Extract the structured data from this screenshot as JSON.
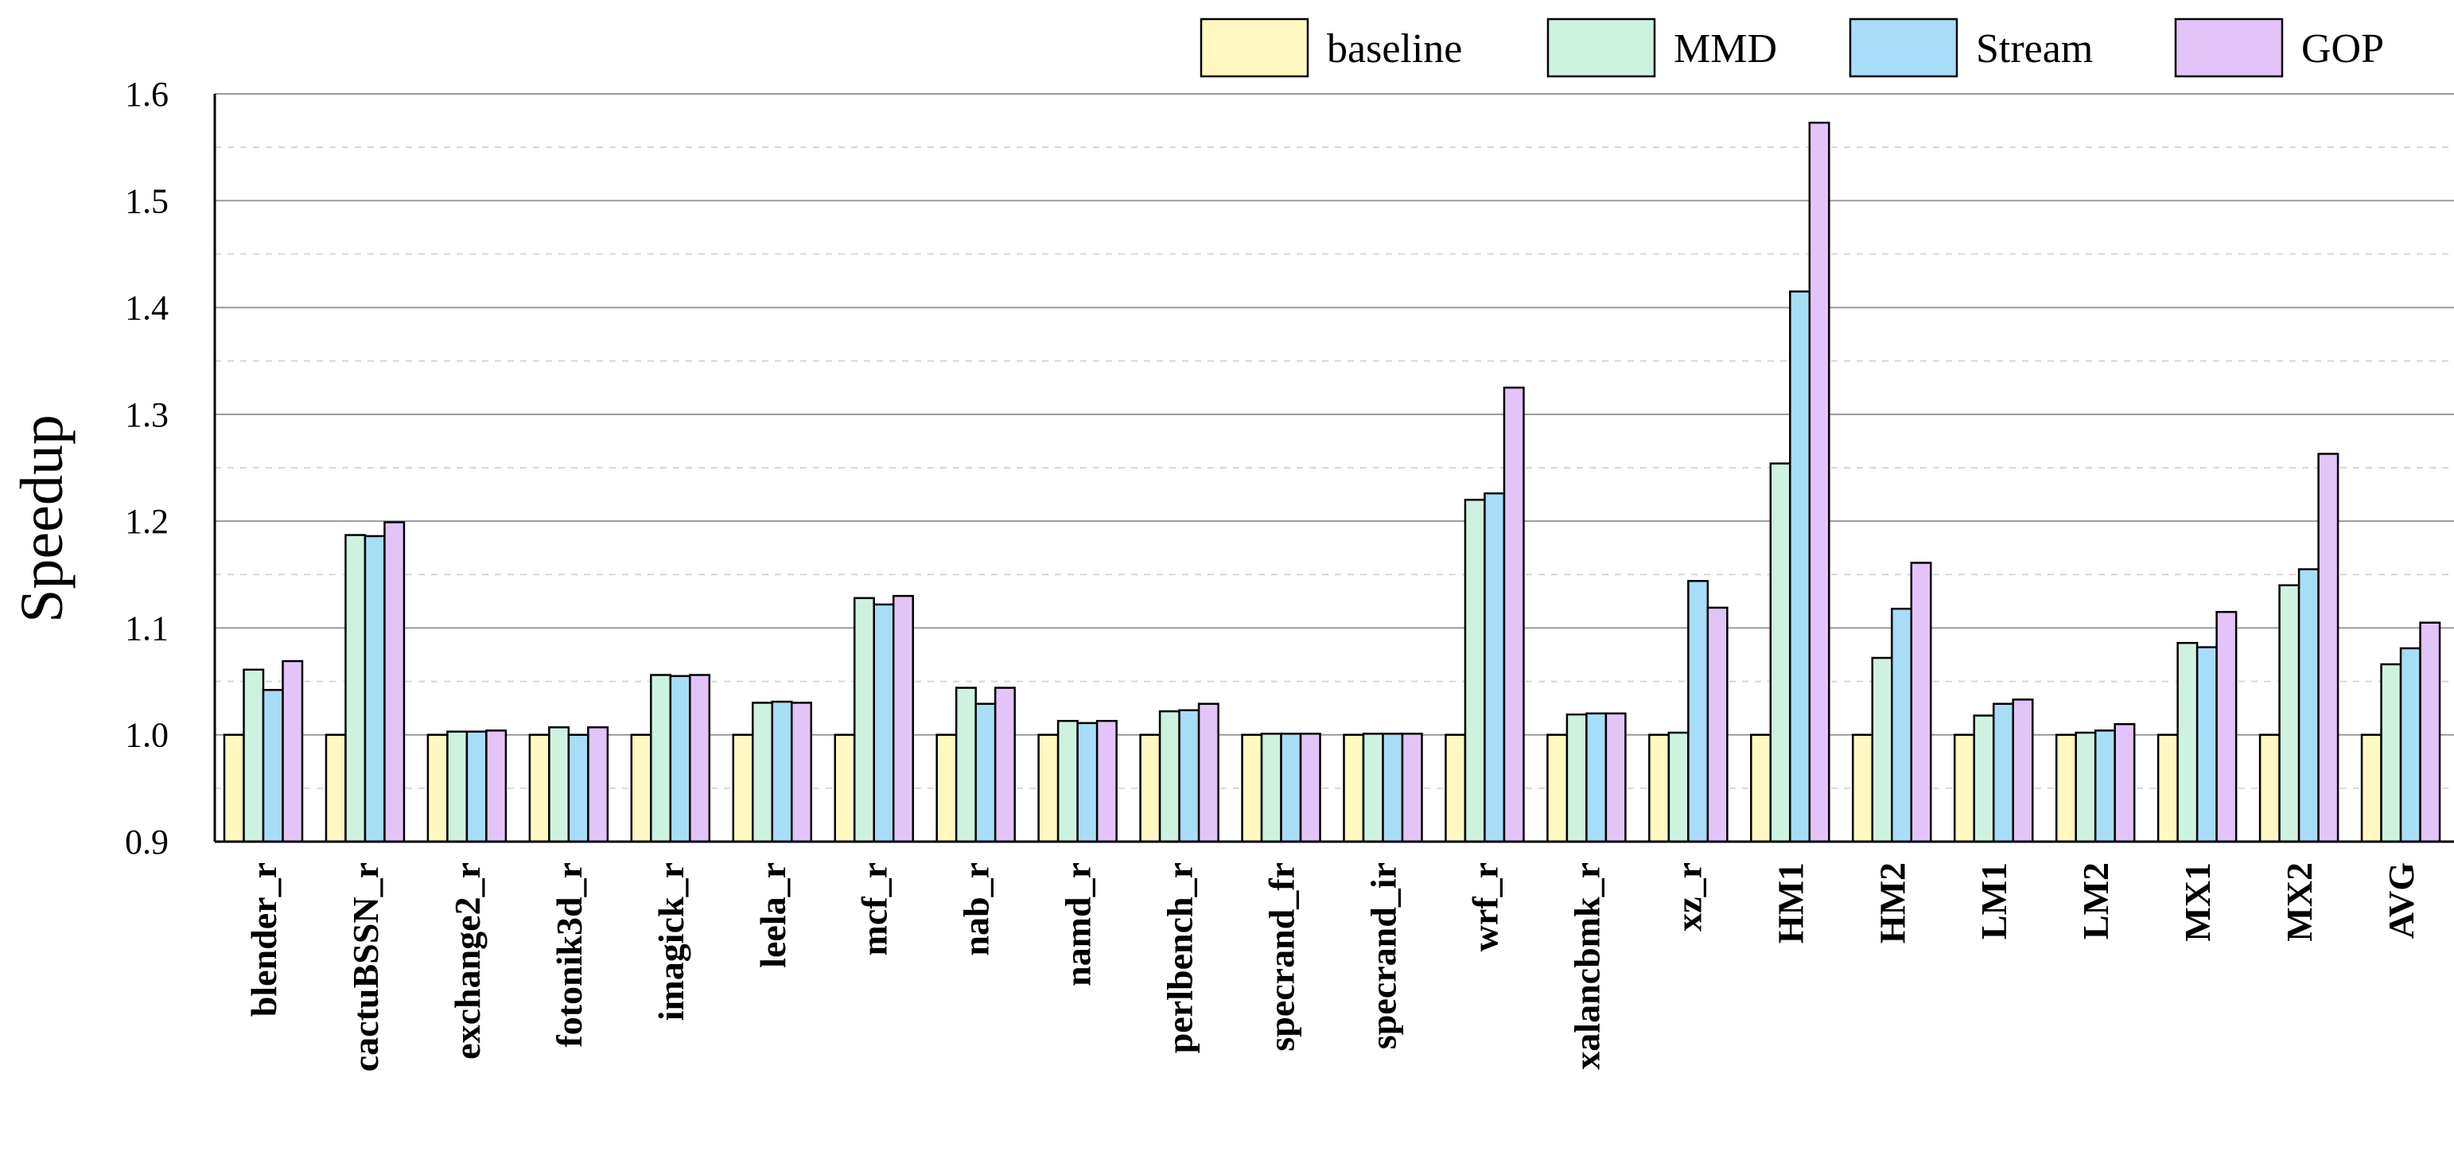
{
  "chart_data": {
    "type": "bar",
    "title": "",
    "xlabel": "",
    "ylabel": "Speedup",
    "ylim": [
      0.9,
      1.6
    ],
    "yticks": [
      "0.9",
      "1.0",
      "1.1",
      "1.2",
      "1.3",
      "1.4",
      "1.5",
      "1.6"
    ],
    "grid": "horizontal",
    "legend_position": "top-right",
    "categories": [
      "blender_r",
      "cactuBSSN_r",
      "exchange2_r",
      "fotonik3d_r",
      "imagick_r",
      "leela_r",
      "mcf_r",
      "nab_r",
      "namd_r",
      "perlbench_r",
      "specrand_fr",
      "specrand_ir",
      "wrf_r",
      "xalancbmk_r",
      "xz_r",
      "HM1",
      "HM2",
      "LM1",
      "LM2",
      "MX1",
      "MX2",
      "AVG"
    ],
    "series": [
      {
        "name": "baseline",
        "color": "#FFF8C0",
        "values": [
          1.0,
          1.0,
          1.0,
          1.0,
          1.0,
          1.0,
          1.0,
          1.0,
          1.0,
          1.0,
          1.0,
          1.0,
          1.0,
          1.0,
          1.0,
          1.0,
          1.0,
          1.0,
          1.0,
          1.0,
          1.0,
          1.0
        ]
      },
      {
        "name": "MMD",
        "color": "#CDF3E0",
        "values": [
          1.061,
          1.187,
          1.003,
          1.007,
          1.056,
          1.03,
          1.128,
          1.044,
          1.013,
          1.022,
          1.001,
          1.001,
          1.22,
          1.019,
          1.002,
          1.254,
          1.072,
          1.018,
          1.002,
          1.086,
          1.14,
          1.066
        ]
      },
      {
        "name": "Stream",
        "color": "#A8DDF7",
        "values": [
          1.042,
          1.186,
          1.003,
          1.0,
          1.055,
          1.031,
          1.122,
          1.029,
          1.011,
          1.023,
          1.001,
          1.001,
          1.226,
          1.02,
          1.144,
          1.415,
          1.118,
          1.029,
          1.004,
          1.082,
          1.155,
          1.081
        ]
      },
      {
        "name": "GOP",
        "color": "#E3C4F8",
        "values": [
          1.069,
          1.199,
          1.004,
          1.007,
          1.056,
          1.03,
          1.13,
          1.044,
          1.013,
          1.029,
          1.001,
          1.001,
          1.325,
          1.02,
          1.119,
          1.573,
          1.161,
          1.033,
          1.01,
          1.115,
          1.263,
          1.105
        ]
      }
    ]
  }
}
